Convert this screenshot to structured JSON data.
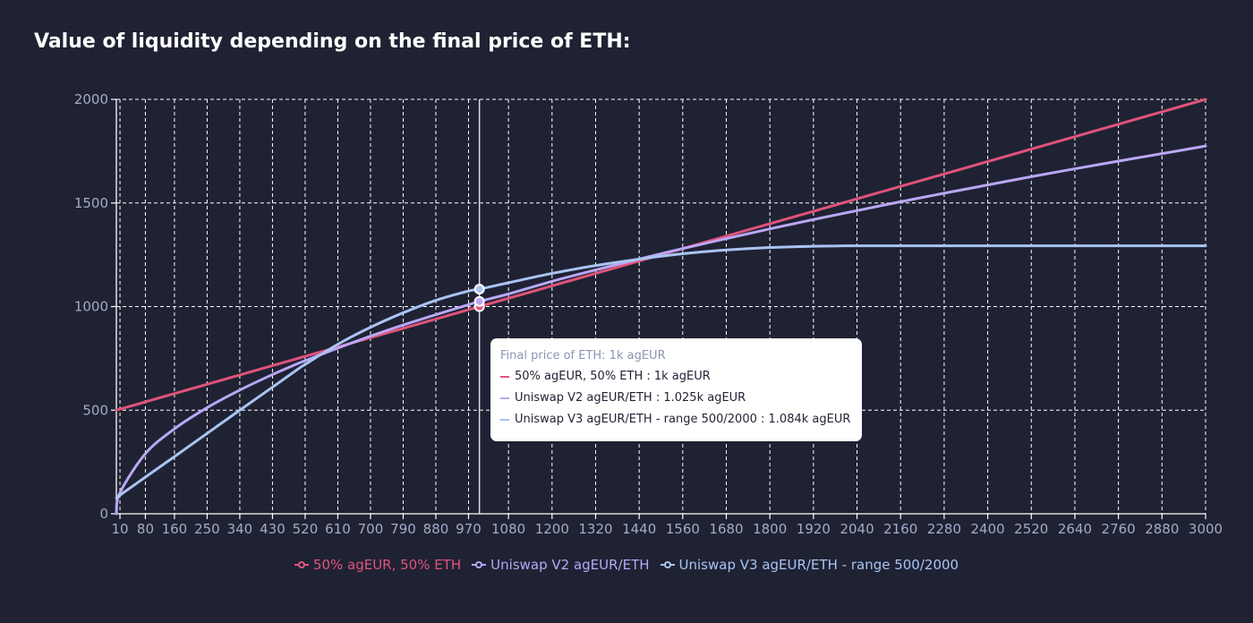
{
  "title": "Value of liquidity depending on the final price of ETH:",
  "colors": {
    "background": "#1f2233",
    "hold": "#e0537a",
    "v2": "#b9a7f5",
    "v3": "#a9c4f3",
    "axis_text": "#a3abc9",
    "grid": "#ffffff"
  },
  "chart_data": {
    "type": "line",
    "title": "Value of liquidity depending on the final price of ETH:",
    "xlabel": "",
    "ylabel": "",
    "xlim": [
      0,
      3000
    ],
    "ylim": [
      0,
      2000
    ],
    "grid": true,
    "legend_position": "bottom-center",
    "x_ticks": [
      10,
      80,
      160,
      250,
      340,
      430,
      520,
      610,
      700,
      790,
      880,
      970,
      1080,
      1200,
      1320,
      1440,
      1560,
      1680,
      1800,
      1920,
      2040,
      2160,
      2280,
      2400,
      2520,
      2640,
      2760,
      2880,
      3000
    ],
    "y_ticks": [
      0,
      500,
      1000,
      1500,
      2000
    ],
    "x": [
      0,
      10,
      80,
      160,
      250,
      340,
      430,
      500,
      520,
      610,
      700,
      790,
      880,
      970,
      1000,
      1080,
      1200,
      1320,
      1440,
      1500,
      1560,
      1680,
      1800,
      1920,
      2000,
      2040,
      2160,
      2280,
      2400,
      2520,
      2640,
      2760,
      2880,
      3000
    ],
    "series": [
      {
        "name": "50% agEUR, 50% ETH",
        "color": "#e0537a",
        "values": [
          500,
          505,
          540,
          580,
          625,
          670,
          715,
          750,
          760,
          805,
          850,
          895,
          940,
          985,
          1000,
          1040,
          1100,
          1160,
          1220,
          1250,
          1280,
          1340,
          1400,
          1460,
          1500,
          1520,
          1580,
          1640,
          1700,
          1760,
          1820,
          1880,
          1940,
          2000
        ]
      },
      {
        "name": "Uniswap V2 agEUR/ETH",
        "color": "#b9a7f5",
        "values": [
          0,
          102,
          290,
          410,
          512,
          597,
          672,
          725,
          739,
          800,
          857,
          911,
          961,
          1009,
          1025,
          1061,
          1122,
          1177,
          1229,
          1255,
          1280,
          1328,
          1375,
          1420,
          1449,
          1463,
          1506,
          1547,
          1587,
          1627,
          1665,
          1702,
          1738,
          1775
        ]
      },
      {
        "name": "Uniswap V3 agEUR/ETH - range 500/2000",
        "color": "#a9c4f3",
        "values": [
          78,
          90,
          177,
          276,
          388,
          500,
          611,
          698,
          721,
          818,
          900,
          970,
          1030,
          1075,
          1084,
          1115,
          1160,
          1198,
          1229,
          1243,
          1255,
          1273,
          1285,
          1291,
          1293,
          1293,
          1293,
          1293,
          1293,
          1293,
          1293,
          1293,
          1293,
          1293
        ]
      }
    ],
    "hover": {
      "x": 1000,
      "title": "Final price of ETH: 1k agEUR",
      "rows": [
        "50% agEUR, 50% ETH : 1k agEUR",
        "Uniswap V2 agEUR/ETH : 1.025k agEUR",
        "Uniswap V3 agEUR/ETH - range 500/2000 : 1.084k agEUR"
      ]
    }
  },
  "legend": [
    {
      "label": "50% agEUR, 50% ETH",
      "color": "#e0537a"
    },
    {
      "label": "Uniswap V2 agEUR/ETH",
      "color": "#b9a7f5"
    },
    {
      "label": "Uniswap V3 agEUR/ETH - range 500/2000",
      "color": "#a9c4f3"
    }
  ]
}
